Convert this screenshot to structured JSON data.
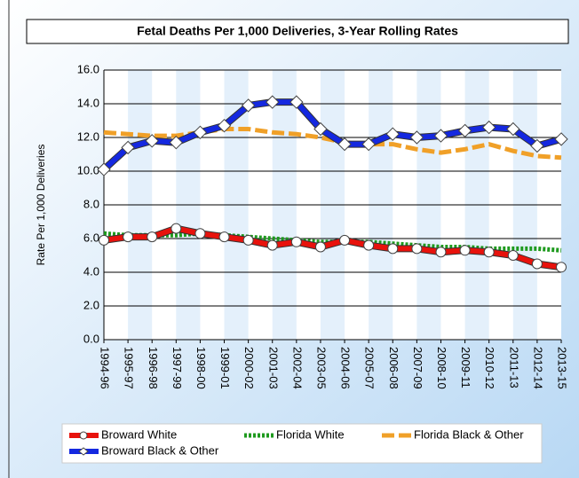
{
  "chart_data": {
    "type": "line",
    "title": "Fetal Deaths Per 1,000 Deliveries, 3-Year Rolling Rates",
    "y_label": "Rate Per 1,000 Deliveries",
    "categories": [
      "1994-96",
      "1995-97",
      "1996-98",
      "1997-99",
      "1998-00",
      "1999-01",
      "2000-02",
      "2001-03",
      "2002-04",
      "2003-05",
      "2004-06",
      "2005-07",
      "2006-08",
      "2007-09",
      "2008-10",
      "2009-11",
      "2010-12",
      "2011-13",
      "2012-14",
      "2013-15"
    ],
    "ylim": [
      0,
      16
    ],
    "yticks": [
      {
        "value": 0,
        "label": "0.0"
      },
      {
        "value": 2,
        "label": "2.0"
      },
      {
        "value": 4,
        "label": "4.0"
      },
      {
        "value": 6,
        "label": "6.0"
      },
      {
        "value": 8,
        "label": "8.0"
      },
      {
        "value": 10,
        "label": "10.0"
      },
      {
        "value": 12,
        "label": "12.0"
      },
      {
        "value": 14,
        "label": "14.0"
      },
      {
        "value": 16,
        "label": "16.0"
      }
    ],
    "grid": true,
    "series": [
      {
        "name": "Broward White",
        "color": "#e8120c",
        "line_style": "solid",
        "marker": "circle",
        "values": [
          5.9,
          6.1,
          6.1,
          6.6,
          6.3,
          6.1,
          5.9,
          5.6,
          5.8,
          5.5,
          5.9,
          5.6,
          5.4,
          5.4,
          5.2,
          5.3,
          5.2,
          5.0,
          4.5,
          4.3
        ]
      },
      {
        "name": "Florida White",
        "color": "#1e9a1e",
        "line_style": "dotted",
        "marker": "none",
        "values": [
          6.3,
          6.2,
          6.2,
          6.2,
          6.3,
          6.2,
          6.1,
          6.0,
          5.9,
          5.8,
          5.8,
          5.8,
          5.7,
          5.6,
          5.5,
          5.5,
          5.4,
          5.4,
          5.4,
          5.3
        ]
      },
      {
        "name": "Florida Black & Other",
        "color": "#f0a028",
        "line_style": "dashed",
        "marker": "none",
        "values": [
          12.3,
          12.2,
          12.1,
          12.1,
          12.3,
          12.5,
          12.5,
          12.3,
          12.2,
          12.0,
          11.7,
          11.6,
          11.6,
          11.3,
          11.1,
          11.3,
          11.6,
          11.2,
          10.9,
          10.8
        ]
      },
      {
        "name": "Broward Black & Other",
        "color": "#1428e0",
        "line_style": "solid",
        "marker": "diamond",
        "values": [
          10.1,
          11.4,
          11.8,
          11.7,
          12.3,
          12.7,
          13.9,
          14.1,
          14.1,
          12.5,
          11.6,
          11.6,
          12.2,
          12.0,
          12.1,
          12.4,
          12.6,
          12.5,
          11.5,
          11.9
        ]
      }
    ]
  }
}
